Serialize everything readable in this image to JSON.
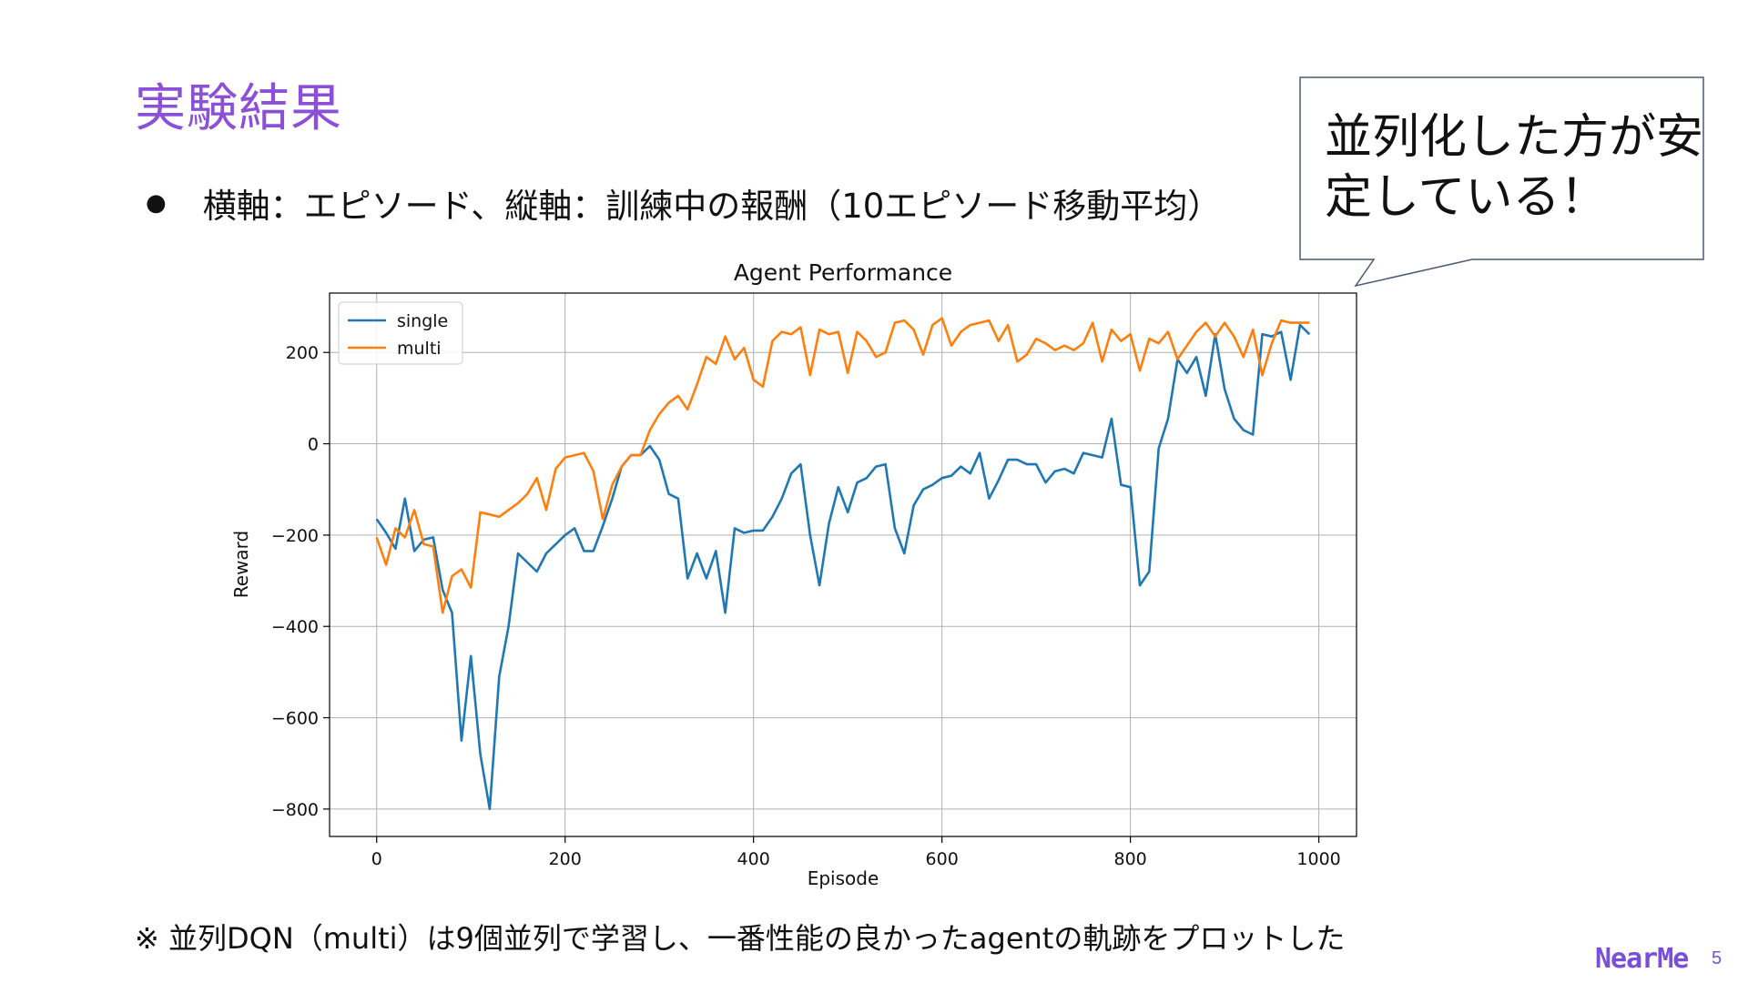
{
  "slide": {
    "title": "実験結果",
    "bullet": "横軸：エピソード、縦軸：訓練中の報酬（10エピソード移動平均）",
    "callout": "並列化した方が安定している！",
    "footnote": "※ 並列DQN（multi）は9個並列で学習し、一番性能の良かったagentの軌跡をプロットした",
    "logo": "NearMe",
    "page_number": "5"
  },
  "colors": {
    "title": "#8b4fd8",
    "single": "#1f77b4",
    "multi": "#ff7f0e",
    "grid": "#b0b0b0",
    "logo": "#7a4fd8"
  },
  "chart_data": {
    "type": "line",
    "title": "Agent Performance",
    "xlabel": "Episode",
    "ylabel": "Reward",
    "xlim": [
      -50,
      1040
    ],
    "ylim": [
      -860,
      330
    ],
    "xticks": [
      0,
      200,
      400,
      600,
      800,
      1000
    ],
    "yticks": [
      -800,
      -600,
      -400,
      -200,
      0,
      200
    ],
    "xtick_labels": [
      "0",
      "200",
      "400",
      "600",
      "800",
      "1000"
    ],
    "ytick_labels": [
      "−800",
      "−600",
      "−400",
      "−200",
      "0",
      "200"
    ],
    "grid": true,
    "legend_position": "upper-left",
    "x": [
      0,
      10,
      20,
      30,
      40,
      50,
      60,
      70,
      80,
      90,
      100,
      110,
      120,
      130,
      140,
      150,
      160,
      170,
      180,
      190,
      200,
      210,
      220,
      230,
      240,
      250,
      260,
      270,
      280,
      290,
      300,
      310,
      320,
      330,
      340,
      350,
      360,
      370,
      380,
      390,
      400,
      410,
      420,
      430,
      440,
      450,
      460,
      470,
      480,
      490,
      500,
      510,
      520,
      530,
      540,
      550,
      560,
      570,
      580,
      590,
      600,
      610,
      620,
      630,
      640,
      650,
      660,
      670,
      680,
      690,
      700,
      710,
      720,
      730,
      740,
      750,
      760,
      770,
      780,
      790,
      800,
      810,
      820,
      830,
      840,
      850,
      860,
      870,
      880,
      890,
      900,
      910,
      920,
      930,
      940,
      950,
      960,
      970,
      980,
      990
    ],
    "series": [
      {
        "name": "single",
        "values": [
          -165,
          -195,
          -230,
          -120,
          -235,
          -210,
          -205,
          -320,
          -370,
          -650,
          -465,
          -680,
          -800,
          -510,
          -400,
          -240,
          -260,
          -280,
          -240,
          -220,
          -200,
          -185,
          -235,
          -235,
          -180,
          -120,
          -50,
          -25,
          -25,
          -5,
          -35,
          -110,
          -120,
          -295,
          -240,
          -295,
          -235,
          -370,
          -185,
          -195,
          -190,
          -190,
          -160,
          -120,
          -65,
          -45,
          -200,
          -310,
          -175,
          -95,
          -150,
          -85,
          -75,
          -50,
          -45,
          -185,
          -240,
          -135,
          -100,
          -90,
          -75,
          -70,
          -50,
          -65,
          -20,
          -120,
          -80,
          -35,
          -35,
          -45,
          -45,
          -85,
          -60,
          -55,
          -65,
          -20,
          -25,
          -30,
          55,
          -90,
          -95,
          -310,
          -280,
          -10,
          55,
          185,
          155,
          190,
          105,
          240,
          120,
          55,
          30,
          20,
          240,
          235,
          245,
          140,
          260,
          240
        ]
      },
      {
        "name": "multi",
        "values": [
          -205,
          -265,
          -185,
          -205,
          -145,
          -220,
          -225,
          -370,
          -290,
          -275,
          -315,
          -150,
          -155,
          -160,
          -145,
          -130,
          -110,
          -75,
          -145,
          -55,
          -30,
          -25,
          -20,
          -60,
          -165,
          -90,
          -50,
          -25,
          -25,
          30,
          65,
          90,
          105,
          75,
          130,
          190,
          175,
          235,
          185,
          210,
          140,
          125,
          225,
          245,
          240,
          255,
          150,
          250,
          240,
          245,
          155,
          245,
          225,
          190,
          200,
          265,
          270,
          250,
          195,
          260,
          275,
          215,
          245,
          260,
          265,
          270,
          225,
          260,
          180,
          195,
          230,
          220,
          205,
          215,
          205,
          220,
          265,
          180,
          250,
          225,
          240,
          160,
          230,
          220,
          245,
          185,
          215,
          245,
          265,
          235,
          265,
          235,
          190,
          250,
          150,
          220,
          270,
          265,
          265,
          265
        ]
      }
    ]
  }
}
